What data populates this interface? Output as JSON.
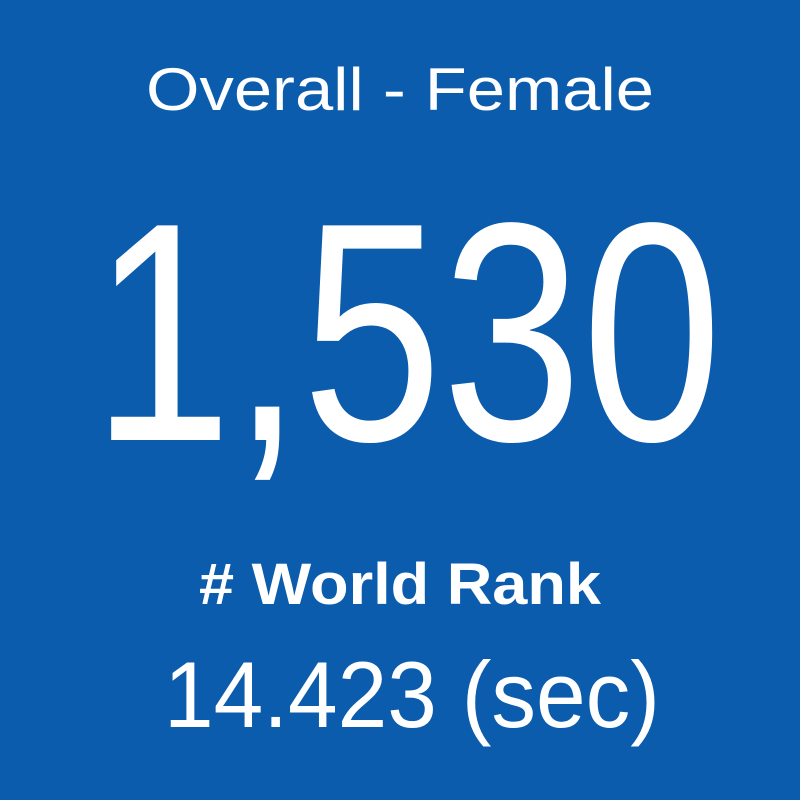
{
  "tile": {
    "title": "Overall - Female",
    "value": "1,530",
    "label": "# World Rank",
    "time": "14.423 (sec)"
  }
}
